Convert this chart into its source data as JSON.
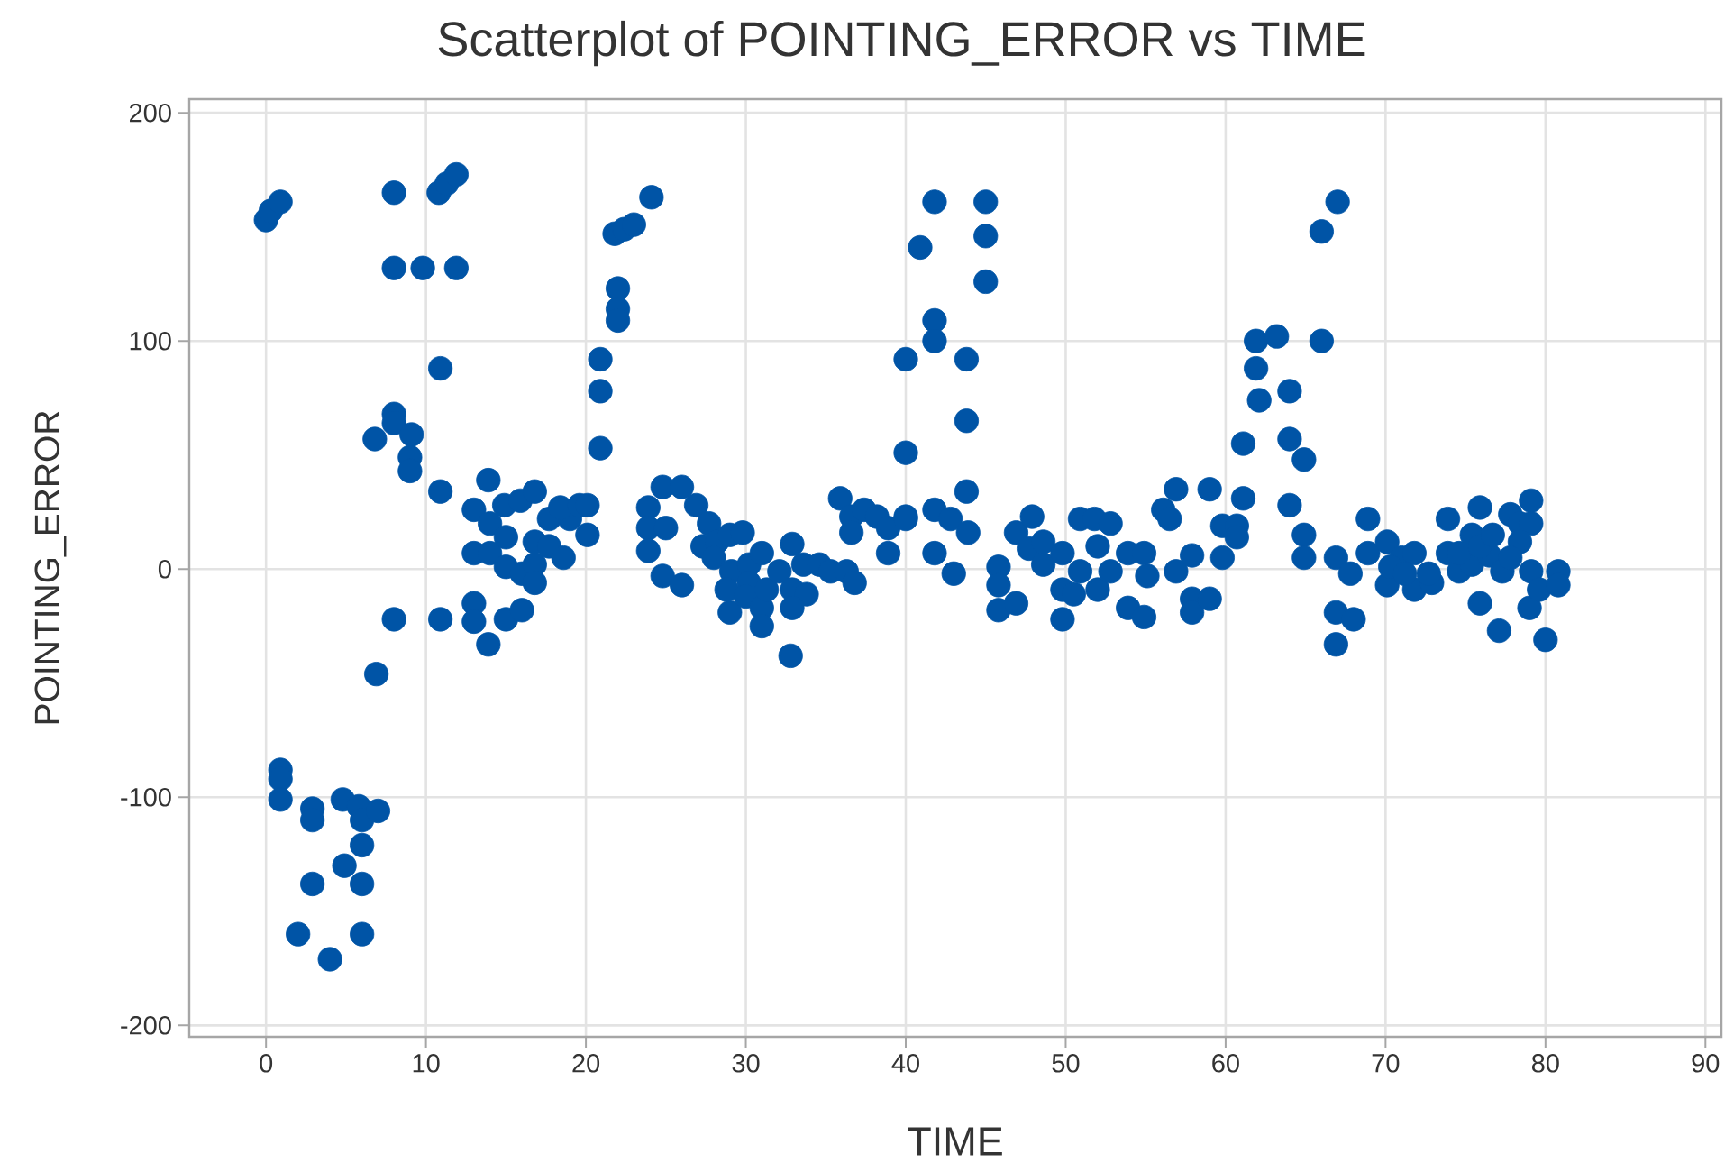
{
  "chart_data": {
    "type": "scatter",
    "title": "Scatterplot of POINTING_ERROR vs TIME",
    "xlabel": "TIME",
    "ylabel": "POINTING_ERROR",
    "x": [
      0.0,
      0.3,
      0.9,
      0.9,
      0.9,
      0.9,
      2.0,
      2.9,
      2.9,
      2.9,
      4.0,
      4.8,
      4.9,
      5.8,
      6.0,
      6.0,
      6.0,
      6.0,
      7.0,
      6.9,
      6.8,
      8.0,
      8.0,
      9.1,
      9.0,
      9.0,
      8.0,
      8.0,
      8.0,
      9.8,
      10.8,
      11.3,
      11.9,
      11.9,
      10.9,
      10.9,
      10.9,
      13.0,
      13.0,
      13.9,
      13.0,
      14.0,
      13.0,
      14.0,
      13.9,
      14.9,
      15.9,
      16.8,
      15.0,
      16.0,
      15.0,
      16.0,
      16.8,
      15.0,
      16.8,
      17.7,
      18.6,
      16.8,
      17.7,
      19.0,
      18.4,
      19.6,
      20.1,
      20.1,
      20.9,
      20.9,
      20.9,
      22.0,
      22.0,
      22.0,
      21.8,
      22.4,
      23.0,
      24.1,
      24.8,
      26.0,
      23.9,
      23.9,
      23.9,
      25.0,
      26.9,
      27.7,
      24.8,
      26.0,
      27.3,
      28.2,
      29.0,
      29.8,
      28.0,
      29.1,
      30.2,
      31.0,
      28.8,
      30.2,
      29.0,
      30.0,
      31.0,
      31.0,
      31.3,
      32.9,
      32.1,
      32.9,
      33.6,
      33.8,
      32.9,
      32.8,
      34.6,
      35.3,
      36.3,
      36.8,
      35.9,
      36.6,
      37.4,
      38.2,
      38.9,
      36.6,
      38.9,
      40.0,
      40.0,
      40.0,
      40.0,
      40.9,
      41.8,
      41.8,
      41.8,
      41.8,
      41.8,
      42.8,
      43.0,
      43.8,
      43.8,
      43.8,
      43.9,
      45.0,
      45.0,
      45.0,
      45.8,
      45.8,
      45.8,
      46.9,
      46.9,
      47.9,
      47.7,
      48.6,
      48.6,
      49.8,
      49.8,
      49.8,
      50.9,
      50.9,
      51.8,
      52.8,
      52.0,
      52.0,
      52.8,
      50.5,
      53.9,
      53.9,
      54.9,
      54.9,
      55.1,
      56.1,
      56.5,
      56.9,
      56.9,
      57.9,
      57.9,
      57.9,
      59.0,
      59.0,
      59.8,
      59.8,
      60.7,
      60.7,
      61.1,
      61.1,
      61.9,
      63.2,
      61.9,
      62.1,
      64.0,
      64.0,
      64.9,
      64.0,
      64.9,
      64.9,
      66.0,
      66.0,
      67.0,
      66.9,
      66.9,
      68.0,
      66.9,
      67.8,
      68.9,
      68.9,
      70.1,
      70.1,
      71.0,
      71.8,
      71.8,
      72.9,
      73.9,
      73.9,
      74.6,
      75.9,
      75.4,
      75.9,
      75.4,
      77.1,
      76.5,
      77.3,
      77.8,
      78.4,
      79.1,
      79.1,
      78.4,
      77.8,
      79.1,
      79.0,
      79.6,
      80.0,
      80.8,
      80.8,
      70.3,
      71.2,
      72.7,
      74.6,
      75.9,
      76.7
    ],
    "values": [
      153,
      157,
      161,
      -88,
      -92,
      -101,
      -160,
      -105,
      -110,
      -138,
      -171,
      -101,
      -130,
      -104,
      -110,
      -121,
      -138,
      -160,
      -106,
      -46,
      57,
      68,
      64,
      59,
      49,
      43,
      -22,
      165,
      132,
      132,
      165,
      169,
      173,
      132,
      88,
      34,
      -22,
      -15,
      -23,
      -33,
      7,
      7,
      26,
      20,
      39,
      28,
      30,
      34,
      -22,
      -18,
      1,
      -2,
      2,
      14,
      12,
      10,
      5,
      -6,
      22,
      22,
      27,
      28,
      28,
      15,
      92,
      78,
      53,
      123,
      114,
      109,
      147,
      149,
      151,
      163,
      36,
      36,
      27,
      18,
      8,
      18,
      28,
      20,
      -3,
      -7,
      10,
      12,
      15,
      16,
      5,
      -1,
      2,
      7,
      -9,
      -6,
      -19,
      -12,
      -17,
      -25,
      -9,
      11,
      -1,
      -9,
      2,
      -11,
      -17,
      -38,
      2,
      -1,
      -1,
      -6,
      31,
      23,
      26,
      23,
      18,
      16,
      7,
      23,
      92,
      51,
      22,
      141,
      161,
      109,
      100,
      26,
      7,
      22,
      -2,
      92,
      65,
      34,
      16,
      161,
      146,
      126,
      1,
      -7,
      -18,
      -15,
      16,
      23,
      9,
      12,
      2,
      7,
      -9,
      -22,
      22,
      -1,
      22,
      20,
      10,
      -9,
      -1,
      -11,
      7,
      -17,
      7,
      -21,
      -3,
      26,
      22,
      35,
      -1,
      6,
      -13,
      -19,
      35,
      -13,
      19,
      5,
      19,
      14,
      31,
      55,
      100,
      102,
      88,
      74,
      78,
      57,
      48,
      28,
      15,
      5,
      148,
      100,
      161,
      5,
      -19,
      -22,
      -33,
      -2,
      22,
      7,
      12,
      -7,
      5,
      7,
      -9,
      -6,
      22,
      7,
      -1,
      27,
      15,
      -15,
      2,
      -27,
      6,
      -1,
      24,
      20,
      30,
      20,
      12,
      5,
      -1,
      -17,
      -9,
      -31,
      -1,
      -7,
      1,
      -2,
      -2,
      7,
      10,
      15
    ],
    "color": "#0054a6",
    "marker": "circle",
    "xlim": [
      -4.8,
      91.0
    ],
    "ylim": [
      -205,
      206
    ],
    "xticks": [
      0,
      10,
      20,
      30,
      40,
      50,
      60,
      70,
      80,
      90
    ],
    "yticks": [
      -200,
      -100,
      0,
      100,
      200
    ],
    "grid": true
  }
}
